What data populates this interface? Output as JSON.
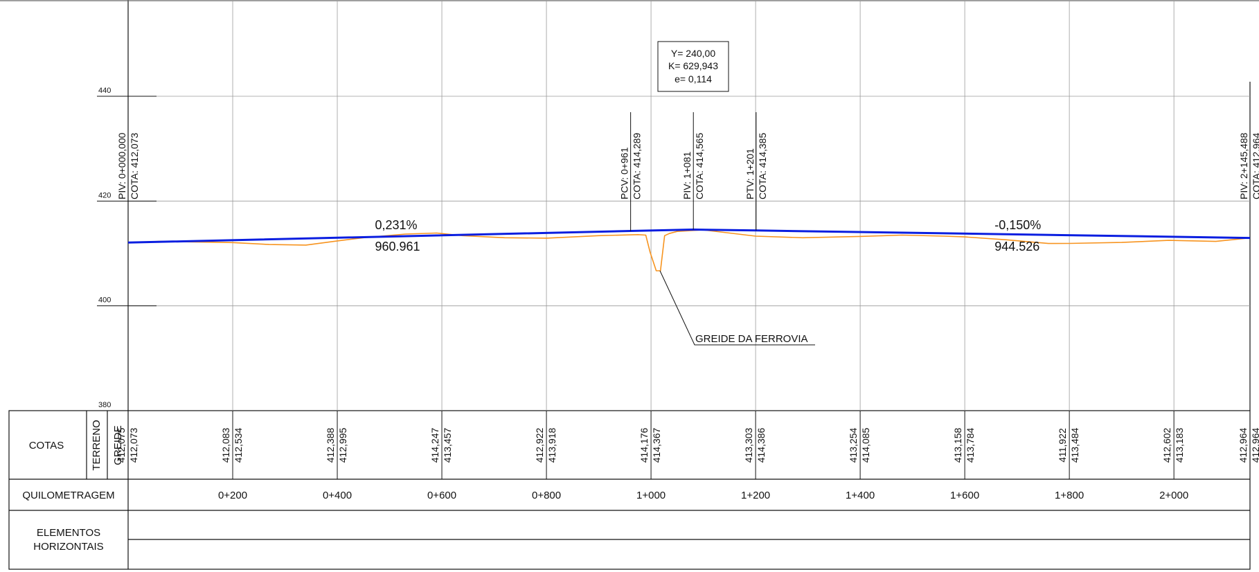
{
  "colors": {
    "terrain": "#f7931e",
    "grade": "#0a1ee0",
    "grid": "#9a9a9a",
    "ink": "#111111"
  },
  "y_axis": {
    "ticks": [
      {
        "value": 440,
        "label": "440"
      },
      {
        "value": 420,
        "label": "420"
      },
      {
        "value": 400,
        "label": "400"
      },
      {
        "value": 380,
        "label": "380"
      }
    ]
  },
  "x_axis": {
    "ticks": [
      {
        "value": 200,
        "label": "0+200"
      },
      {
        "value": 400,
        "label": "0+400"
      },
      {
        "value": 600,
        "label": "0+600"
      },
      {
        "value": 800,
        "label": "0+800"
      },
      {
        "value": 1000,
        "label": "1+000"
      },
      {
        "value": 1200,
        "label": "1+200"
      },
      {
        "value": 1400,
        "label": "1+400"
      },
      {
        "value": 1600,
        "label": "1+600"
      },
      {
        "value": 1800,
        "label": "1+800"
      },
      {
        "value": 2000,
        "label": "2+000"
      }
    ]
  },
  "curve_box": {
    "line1": "Y= 240,00",
    "line2": "K= 629,943",
    "line3": "e= 0,114"
  },
  "vertical_points": [
    {
      "station": 0,
      "elev": 412.073,
      "label1": "PIV: 0+000,000",
      "label2": "COTA: 412,073"
    },
    {
      "station": 961,
      "elev": 414.289,
      "label1": "PCV: 0+961",
      "label2": "COTA: 414,289"
    },
    {
      "station": 1081,
      "elev": 414.565,
      "label1": "PIV: 1+081",
      "label2": "COTA: 414,565"
    },
    {
      "station": 1201,
      "elev": 414.385,
      "label1": "PTV: 1+201",
      "label2": "COTA: 414,385"
    },
    {
      "station": 2145.488,
      "elev": 412.964,
      "label1": "PIV: 2+145,488",
      "label2": "COTA: 412,964"
    }
  ],
  "slopes": [
    {
      "grade": "0,231%",
      "length": "960.961",
      "station": 435
    },
    {
      "grade": "-0,150%",
      "length": "944.526",
      "station": 1620
    }
  ],
  "leader_label": "GREIDE DA FERROVIA",
  "chart_data": {
    "type": "line",
    "x_range": [
      0,
      2145.488
    ],
    "y_range": [
      380,
      440
    ],
    "series": [
      {
        "name": "TERRENO",
        "points": [
          [
            0,
            412.07
          ],
          [
            60,
            412.3
          ],
          [
            200,
            412.08
          ],
          [
            270,
            411.7
          ],
          [
            340,
            411.6
          ],
          [
            400,
            412.39
          ],
          [
            450,
            413.0
          ],
          [
            530,
            413.7
          ],
          [
            590,
            413.9
          ],
          [
            640,
            413.4
          ],
          [
            720,
            413.0
          ],
          [
            800,
            412.92
          ],
          [
            900,
            413.4
          ],
          [
            975,
            413.6
          ],
          [
            990,
            413.5
          ],
          [
            998,
            410.3
          ],
          [
            1010,
            406.7
          ],
          [
            1018,
            406.7
          ],
          [
            1026,
            413.4
          ],
          [
            1035,
            413.8
          ],
          [
            1050,
            414.2
          ],
          [
            1100,
            414.5
          ],
          [
            1150,
            413.9
          ],
          [
            1200,
            413.3
          ],
          [
            1290,
            413.0
          ],
          [
            1400,
            413.25
          ],
          [
            1480,
            413.5
          ],
          [
            1560,
            413.3
          ],
          [
            1600,
            413.16
          ],
          [
            1680,
            412.6
          ],
          [
            1760,
            411.9
          ],
          [
            1800,
            411.92
          ],
          [
            1900,
            412.1
          ],
          [
            1990,
            412.5
          ],
          [
            2080,
            412.3
          ],
          [
            2145.488,
            412.96
          ]
        ]
      },
      {
        "name": "GREIDE",
        "points": [
          [
            0,
            412.073
          ],
          [
            961,
            414.289
          ],
          [
            1081,
            414.565
          ],
          [
            1201,
            414.385
          ],
          [
            2145.488,
            412.964
          ]
        ]
      }
    ]
  },
  "table": {
    "row_cotas": "COTAS",
    "sub_terreno": "TERRENO",
    "sub_greide": "GREIDE",
    "row_quilometragem": "QUILOMETRAGEM",
    "row_elementos_line1": "ELEMENTOS",
    "row_elementos_line2": "HORIZONTAIS",
    "cotas": [
      {
        "station": 0,
        "terreno": "412,075",
        "greide": "412,073"
      },
      {
        "station": 200,
        "terreno": "412,083",
        "greide": "412,534"
      },
      {
        "station": 400,
        "terreno": "412,388",
        "greide": "412,995"
      },
      {
        "station": 600,
        "terreno": "414,247",
        "greide": "413,457"
      },
      {
        "station": 800,
        "terreno": "412,922",
        "greide": "413,918"
      },
      {
        "station": 1000,
        "terreno": "414,176",
        "greide": "414,367"
      },
      {
        "station": 1200,
        "terreno": "413,303",
        "greide": "414,386"
      },
      {
        "station": 1400,
        "terreno": "413,254",
        "greide": "414,085"
      },
      {
        "station": 1600,
        "terreno": "413,158",
        "greide": "413,784"
      },
      {
        "station": 1800,
        "terreno": "411,922",
        "greide": "413,484"
      },
      {
        "station": 2000,
        "terreno": "412,602",
        "greide": "413,183"
      },
      {
        "station": 2145.488,
        "terreno": "412,964",
        "greide": "412,964"
      }
    ]
  }
}
